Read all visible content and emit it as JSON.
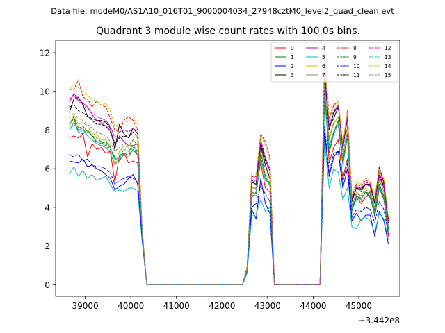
{
  "suptitle": "Data file: modeM0/AS1A10_016T01_9000004034_27948cztM0_level2_quad_clean.evt",
  "chart_data": {
    "type": "line",
    "title": "Quadrant 3 module wise count rates with 100.0s bins.",
    "xlabel": "",
    "ylabel": "",
    "x_offset_label": "+3.442e8",
    "xlim": [
      38350,
      45900
    ],
    "ylim": [
      -0.6,
      12.65
    ],
    "x_ticks": [
      39000,
      40000,
      41000,
      42000,
      43000,
      44000,
      45000
    ],
    "x_tick_labels": [
      "39000",
      "40000",
      "41000",
      "42000",
      "43000",
      "44000",
      "45000"
    ],
    "y_ticks": [
      0,
      2,
      4,
      6,
      8,
      10,
      12
    ],
    "y_tick_labels": [
      "0",
      "2",
      "4",
      "6",
      "8",
      "10",
      "12"
    ],
    "grid": false,
    "legend_position": "top-right",
    "x": [
      38650,
      38750,
      38850,
      38950,
      39050,
      39150,
      39250,
      39350,
      39450,
      39550,
      39650,
      39750,
      39850,
      39950,
      40050,
      40150,
      40250,
      40350,
      40450,
      40550,
      40650,
      40750,
      40850,
      40950,
      41050,
      41150,
      41250,
      41350,
      41450,
      41550,
      41650,
      41750,
      41850,
      41950,
      42050,
      42150,
      42250,
      42350,
      42450,
      42550,
      42650,
      42750,
      42850,
      42950,
      43050,
      43150,
      43250,
      43350,
      43450,
      43550,
      43650,
      43750,
      43850,
      43950,
      44050,
      44150,
      44250,
      44350,
      44450,
      44550,
      44650,
      44750,
      44850,
      44950,
      45050,
      45150,
      45250,
      45350,
      45450,
      45550,
      45650
    ],
    "series": [
      {
        "name": "0",
        "color": "#ff0000",
        "dash": false,
        "values": [
          7.6,
          7.7,
          7.6,
          7.8,
          6.6,
          7.3,
          7.0,
          7.1,
          6.8,
          6.9,
          5.3,
          6.7,
          6.8,
          6.3,
          6.4,
          6.3,
          2.5,
          0,
          0,
          0,
          0,
          0,
          0,
          0,
          0,
          0,
          0,
          0,
          0,
          0,
          0,
          0,
          0,
          0,
          0,
          0,
          0,
          0,
          0,
          0.9,
          5.0,
          5.0,
          6.3,
          5.0,
          4.8,
          0,
          0,
          0,
          0,
          0,
          0,
          0,
          0,
          0,
          0,
          0,
          10.5,
          6.3,
          7.1,
          7.5,
          5.5,
          6.5,
          4.0,
          4.5,
          4.2,
          4.5,
          4.8,
          3.5,
          5.0,
          4.5,
          2.5
        ]
      },
      {
        "name": "1",
        "color": "#008000",
        "dash": false,
        "values": [
          8.3,
          8.6,
          7.9,
          7.8,
          8.0,
          7.7,
          7.4,
          7.3,
          7.4,
          7.1,
          6.5,
          6.4,
          6.8,
          6.7,
          7.0,
          6.7,
          2.5,
          0,
          0,
          0,
          0,
          0,
          0,
          0,
          0,
          0,
          0,
          0,
          0,
          0,
          0,
          0,
          0,
          0,
          0,
          0,
          0,
          0,
          0,
          0.8,
          4.5,
          4.8,
          6.6,
          5.4,
          5.3,
          0,
          0,
          0,
          0,
          0,
          0,
          0,
          0,
          0,
          0,
          0,
          9.7,
          6.8,
          7.8,
          8.5,
          6.4,
          7.6,
          3.8,
          4.6,
          4.4,
          4.8,
          4.5,
          3.6,
          5.0,
          4.4,
          2.8
        ]
      },
      {
        "name": "2",
        "color": "#0000ff",
        "dash": false,
        "values": [
          6.4,
          6.35,
          6.3,
          6.5,
          6.1,
          6.2,
          6.0,
          5.9,
          5.7,
          5.5,
          4.9,
          5.1,
          5.2,
          5.5,
          5.7,
          5.2,
          2.3,
          0,
          0,
          0,
          0,
          0,
          0,
          0,
          0,
          0,
          0,
          0,
          0,
          0,
          0,
          0,
          0,
          0,
          0,
          0,
          0,
          0,
          0,
          0.6,
          3.9,
          3.4,
          5.5,
          4.2,
          3.7,
          0,
          0,
          0,
          0,
          0,
          0,
          0,
          0,
          0,
          0,
          0,
          7.9,
          5.6,
          6.6,
          6.9,
          5.0,
          6.0,
          3.3,
          3.7,
          3.3,
          3.6,
          3.6,
          2.5,
          3.8,
          3.3,
          2.1
        ]
      },
      {
        "name": "3",
        "color": "#000000",
        "dash": false,
        "values": [
          8.9,
          9.6,
          9.7,
          9.3,
          8.7,
          8.6,
          8.5,
          8.5,
          8.4,
          8.1,
          7.0,
          8.3,
          7.8,
          7.6,
          8.1,
          7.8,
          2.6,
          0,
          0,
          0,
          0,
          0,
          0,
          0,
          0,
          0,
          0,
          0,
          0,
          0,
          0,
          0,
          0,
          0,
          0,
          0,
          0,
          0,
          0,
          0.8,
          5.3,
          5.2,
          7.2,
          6.2,
          5.5,
          0,
          0,
          0,
          0,
          0,
          0,
          0,
          0,
          0,
          0,
          0,
          10.8,
          8.2,
          8.6,
          9.2,
          7.2,
          8.6,
          4.3,
          5.0,
          5.0,
          5.2,
          5.2,
          4.3,
          6.1,
          5.3,
          3.3
        ]
      },
      {
        "name": "4",
        "color": "#bf00bf",
        "dash": false,
        "values": [
          9.4,
          9.9,
          9.6,
          9.4,
          9.2,
          8.8,
          8.5,
          8.4,
          8.2,
          8.0,
          7.3,
          7.7,
          7.4,
          7.2,
          7.2,
          7.3,
          2.7,
          0,
          0,
          0,
          0,
          0,
          0,
          0,
          0,
          0,
          0,
          0,
          0,
          0,
          0,
          0,
          0,
          0,
          0,
          0,
          0,
          0,
          0,
          0.8,
          5.4,
          5.3,
          7.3,
          6.5,
          5.9,
          0,
          0,
          0,
          0,
          0,
          0,
          0,
          0,
          0,
          0,
          0,
          10.8,
          8.0,
          8.9,
          9.3,
          7.0,
          8.6,
          4.4,
          5.0,
          4.8,
          5.2,
          5.1,
          4.2,
          5.6,
          5.0,
          3.2
        ]
      },
      {
        "name": "5",
        "color": "#00bfbf",
        "dash": false,
        "values": [
          5.7,
          6.1,
          5.6,
          5.9,
          5.5,
          5.7,
          5.4,
          5.5,
          5.6,
          5.2,
          4.8,
          4.9,
          4.8,
          5.0,
          5.0,
          4.8,
          2.2,
          0,
          0,
          0,
          0,
          0,
          0,
          0,
          0,
          0,
          0,
          0,
          0,
          0,
          0,
          0,
          0,
          0,
          0,
          0,
          0,
          0,
          0,
          0.6,
          3.5,
          3.7,
          4.4,
          3.8,
          4.0,
          0,
          0,
          0,
          0,
          0,
          0,
          0,
          0,
          0,
          0,
          0,
          7.5,
          5.0,
          6.0,
          5.8,
          4.4,
          5.0,
          3.0,
          2.9,
          3.4,
          3.5,
          3.3,
          2.7,
          3.7,
          3.4,
          2.3
        ]
      },
      {
        "name": "6",
        "color": "#bfbf00",
        "dash": false,
        "values": [
          8.2,
          8.8,
          8.3,
          8.4,
          8.2,
          7.8,
          7.8,
          7.5,
          7.5,
          7.2,
          6.2,
          6.9,
          7.2,
          7.1,
          7.5,
          7.2,
          2.6,
          0,
          0,
          0,
          0,
          0,
          0,
          0,
          0,
          0,
          0,
          0,
          0,
          0,
          0,
          0,
          0,
          0,
          0,
          0,
          0,
          0,
          0,
          0.8,
          5.1,
          4.9,
          6.9,
          5.7,
          5.5,
          0,
          0,
          0,
          0,
          0,
          0,
          0,
          0,
          0,
          0,
          0,
          10.2,
          7.5,
          8.3,
          8.7,
          6.5,
          8.2,
          4.0,
          4.8,
          4.6,
          5.0,
          4.9,
          4.0,
          5.5,
          4.8,
          3.0
        ]
      },
      {
        "name": "7",
        "color": "#808080",
        "dash": false,
        "values": [
          8.0,
          8.4,
          8.0,
          8.1,
          7.7,
          7.5,
          7.3,
          7.2,
          7.1,
          6.8,
          6.2,
          6.5,
          6.7,
          6.6,
          7.0,
          6.8,
          2.5,
          0,
          0,
          0,
          0,
          0,
          0,
          0,
          0,
          0,
          0,
          0,
          0,
          0,
          0,
          0,
          0,
          0,
          0,
          0,
          0,
          0,
          0,
          0.7,
          4.8,
          4.7,
          6.5,
          5.4,
          5.2,
          0,
          0,
          0,
          0,
          0,
          0,
          0,
          0,
          0,
          0,
          0,
          9.6,
          7.2,
          7.9,
          8.3,
          6.2,
          7.8,
          3.8,
          4.5,
          4.4,
          4.8,
          4.6,
          3.8,
          5.2,
          4.6,
          2.9
        ]
      },
      {
        "name": "8",
        "color": "#ff0000",
        "dash": true,
        "values": [
          10.1,
          10.1,
          10.6,
          9.7,
          9.6,
          9.2,
          9.5,
          9.3,
          9.2,
          8.6,
          8.0,
          7.9,
          8.5,
          8.7,
          8.5,
          8.0,
          2.8,
          0,
          0,
          0,
          0,
          0,
          0,
          0,
          0,
          0,
          0,
          0,
          0,
          0,
          0,
          0,
          0,
          0,
          0,
          0,
          0,
          0,
          0,
          0.9,
          5.6,
          5.6,
          7.8,
          7.4,
          6.6,
          0,
          0,
          0,
          0,
          0,
          0,
          0,
          0,
          0,
          0,
          0,
          12.1,
          8.6,
          9.3,
          9.5,
          7.3,
          9.0,
          4.5,
          5.2,
          5.1,
          5.4,
          5.3,
          4.3,
          5.9,
          5.4,
          3.4
        ]
      },
      {
        "name": "9",
        "color": "#008000",
        "dash": true,
        "values": [
          8.3,
          8.7,
          8.1,
          8.2,
          7.9,
          7.7,
          7.6,
          7.4,
          7.3,
          7.0,
          6.6,
          6.6,
          7.0,
          6.9,
          7.2,
          6.9,
          2.6,
          0,
          0,
          0,
          0,
          0,
          0,
          0,
          0,
          0,
          0,
          0,
          0,
          0,
          0,
          0,
          0,
          0,
          0,
          0,
          0,
          0,
          0,
          0.7,
          4.6,
          4.6,
          6.8,
          5.6,
          5.2,
          0,
          0,
          0,
          0,
          0,
          0,
          0,
          0,
          0,
          0,
          0,
          9.9,
          7.0,
          7.9,
          8.5,
          6.3,
          7.8,
          3.9,
          4.6,
          4.5,
          4.8,
          4.7,
          3.8,
          5.2,
          4.6,
          2.9
        ]
      },
      {
        "name": "10",
        "color": "#0000ff",
        "dash": true,
        "values": [
          6.75,
          6.6,
          6.75,
          6.4,
          6.5,
          6.2,
          6.1,
          6.1,
          6.0,
          5.8,
          5.2,
          5.4,
          5.5,
          5.6,
          5.5,
          5.3,
          2.3,
          0,
          0,
          0,
          0,
          0,
          0,
          0,
          0,
          0,
          0,
          0,
          0,
          0,
          0,
          0,
          0,
          0,
          0,
          0,
          0,
          0,
          0,
          0.7,
          4.0,
          4.2,
          5.1,
          4.7,
          4.3,
          0,
          0,
          0,
          0,
          0,
          0,
          0,
          0,
          0,
          0,
          0,
          8.2,
          5.8,
          6.8,
          6.9,
          5.3,
          6.3,
          3.5,
          3.9,
          3.8,
          4.0,
          3.9,
          3.2,
          4.3,
          3.9,
          2.6
        ]
      },
      {
        "name": "11",
        "color": "#000000",
        "dash": true,
        "values": [
          9.2,
          9.3,
          9.0,
          8.9,
          8.7,
          8.5,
          8.3,
          8.3,
          8.2,
          7.9,
          7.3,
          7.6,
          7.7,
          7.6,
          7.9,
          7.6,
          2.7,
          0,
          0,
          0,
          0,
          0,
          0,
          0,
          0,
          0,
          0,
          0,
          0,
          0,
          0,
          0,
          0,
          0,
          0,
          0,
          0,
          0,
          0,
          0.8,
          5.3,
          5.2,
          7.4,
          6.4,
          5.9,
          0,
          0,
          0,
          0,
          0,
          0,
          0,
          0,
          0,
          0,
          0,
          11.2,
          8.0,
          8.9,
          9.2,
          7.0,
          8.7,
          4.4,
          5.0,
          4.9,
          5.2,
          5.1,
          4.2,
          5.7,
          5.1,
          3.2
        ]
      },
      {
        "name": "12",
        "color": "#bf00bf",
        "dash": true,
        "values": [
          9.6,
          9.8,
          9.5,
          9.3,
          9.1,
          8.9,
          8.7,
          8.6,
          8.5,
          8.2,
          7.6,
          7.9,
          8.0,
          7.9,
          8.1,
          7.9,
          2.7,
          0,
          0,
          0,
          0,
          0,
          0,
          0,
          0,
          0,
          0,
          0,
          0,
          0,
          0,
          0,
          0,
          0,
          0,
          0,
          0,
          0,
          0,
          0.8,
          5.4,
          5.4,
          7.5,
          6.6,
          6.0,
          0,
          0,
          0,
          0,
          0,
          0,
          0,
          0,
          0,
          0,
          0,
          11.4,
          8.2,
          9.0,
          9.3,
          7.1,
          8.8,
          4.5,
          5.1,
          5.0,
          5.3,
          5.2,
          4.3,
          5.8,
          5.2,
          3.3
        ]
      },
      {
        "name": "13",
        "color": "#00bfbf",
        "dash": true,
        "values": [
          8.0,
          8.3,
          7.9,
          8.0,
          7.7,
          7.5,
          7.4,
          7.3,
          7.2,
          6.9,
          6.5,
          6.6,
          6.8,
          6.8,
          7.1,
          6.8,
          2.6,
          0,
          0,
          0,
          0,
          0,
          0,
          0,
          0,
          0,
          0,
          0,
          0,
          0,
          0,
          0,
          0,
          0,
          0,
          0,
          0,
          0,
          0,
          0.7,
          4.7,
          4.8,
          6.5,
          5.5,
          5.1,
          0,
          0,
          0,
          0,
          0,
          0,
          0,
          0,
          0,
          0,
          0,
          9.6,
          7.0,
          7.8,
          8.2,
          6.1,
          7.6,
          3.9,
          4.4,
          4.3,
          4.6,
          4.5,
          3.7,
          5.1,
          4.5,
          2.9
        ]
      },
      {
        "name": "14",
        "color": "#bfbf00",
        "dash": true,
        "values": [
          10.1,
          10.4,
          10.2,
          10.0,
          9.8,
          9.6,
          9.5,
          9.3,
          9.4,
          9.0,
          8.2,
          8.3,
          8.5,
          8.4,
          8.6,
          8.3,
          2.8,
          0,
          0,
          0,
          0,
          0,
          0,
          0,
          0,
          0,
          0,
          0,
          0,
          0,
          0,
          0,
          0,
          0,
          0,
          0,
          0,
          0,
          0,
          0.9,
          5.8,
          5.7,
          7.7,
          7.2,
          6.4,
          0,
          0,
          0,
          0,
          0,
          0,
          0,
          0,
          0,
          0,
          0,
          11.7,
          8.5,
          9.2,
          9.5,
          7.3,
          8.9,
          4.6,
          5.3,
          5.2,
          5.5,
          5.4,
          4.5,
          6.0,
          5.5,
          3.5
        ]
      },
      {
        "name": "15",
        "color": "#808080",
        "dash": true,
        "values": [
          8.6,
          8.9,
          8.6,
          8.5,
          8.3,
          8.1,
          7.9,
          7.8,
          7.7,
          7.4,
          6.9,
          7.1,
          7.3,
          7.2,
          7.5,
          7.2,
          2.6,
          0,
          0,
          0,
          0,
          0,
          0,
          0,
          0,
          0,
          0,
          0,
          0,
          0,
          0,
          0,
          0,
          0,
          0,
          0,
          0,
          0,
          0,
          0.8,
          5.0,
          5.0,
          7.0,
          6.0,
          5.5,
          0,
          0,
          0,
          0,
          0,
          0,
          0,
          0,
          0,
          0,
          0,
          10.4,
          7.6,
          8.4,
          8.7,
          6.6,
          8.2,
          4.1,
          4.7,
          4.6,
          4.9,
          4.8,
          3.9,
          5.4,
          4.8,
          3.0
        ]
      }
    ]
  }
}
